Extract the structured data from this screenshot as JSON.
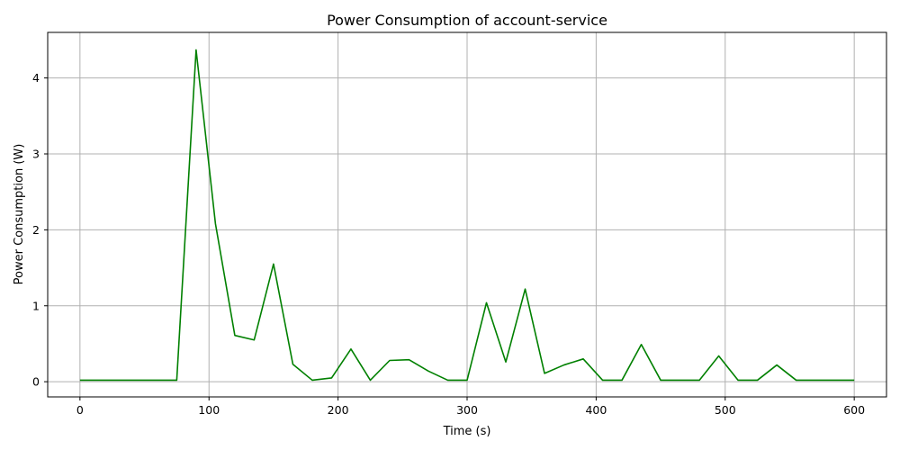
{
  "chart_data": {
    "type": "line",
    "title": "Power Consumption of account-service",
    "xlabel": "Time (s)",
    "ylabel": "Power Consumption (W)",
    "xlim": [
      -25,
      625
    ],
    "ylim": [
      -0.2,
      4.6
    ],
    "xticks": [
      0,
      100,
      200,
      300,
      400,
      500,
      600
    ],
    "yticks": [
      0,
      1,
      2,
      3,
      4
    ],
    "grid": true,
    "series": [
      {
        "color": "#008000",
        "x": [
          0,
          15,
          30,
          45,
          60,
          75,
          90,
          105,
          120,
          135,
          150,
          165,
          180,
          195,
          210,
          225,
          240,
          255,
          270,
          285,
          300,
          315,
          330,
          345,
          360,
          375,
          390,
          405,
          420,
          435,
          450,
          465,
          480,
          495,
          510,
          525,
          540,
          555,
          570,
          585,
          600
        ],
        "y": [
          0.02,
          0.02,
          0.02,
          0.02,
          0.02,
          0.02,
          4.37,
          2.08,
          0.61,
          0.55,
          1.55,
          0.23,
          0.02,
          0.05,
          0.43,
          0.02,
          0.28,
          0.29,
          0.14,
          0.02,
          0.02,
          1.04,
          0.26,
          1.22,
          0.11,
          0.22,
          0.3,
          0.02,
          0.02,
          0.49,
          0.02,
          0.02,
          0.02,
          0.34,
          0.02,
          0.02,
          0.22,
          0.02,
          0.02,
          0.02,
          0.02
        ]
      }
    ]
  }
}
